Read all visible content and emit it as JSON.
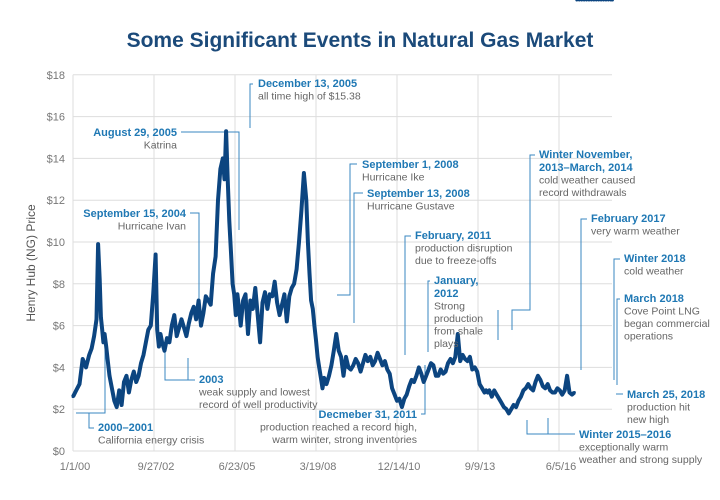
{
  "chart_data": {
    "type": "line",
    "title": "Some Significant Events in Natural Gas Market",
    "xlabel": "",
    "ylabel": "Henry Hub (NG) Price",
    "ylim": [
      0,
      18
    ],
    "xlim_days_from_2000_01_01": [
      0,
      7000
    ],
    "grid": true,
    "legend": "none",
    "yticks": [
      {
        "value": 0,
        "label": "$0"
      },
      {
        "value": 2,
        "label": "$2"
      },
      {
        "value": 4,
        "label": "$4"
      },
      {
        "value": 6,
        "label": "$6"
      },
      {
        "value": 8,
        "label": "$8"
      },
      {
        "value": 10,
        "label": "$10"
      },
      {
        "value": 12,
        "label": "$12"
      },
      {
        "value": 14,
        "label": "$14"
      },
      {
        "value": 16,
        "label": "$16"
      },
      {
        "value": 18,
        "label": "$18"
      }
    ],
    "xticks": [
      {
        "day": 0,
        "label": "1/1/00"
      },
      {
        "day": 1000,
        "label": "9/27/02"
      },
      {
        "day": 2000,
        "label": "6/23/05"
      },
      {
        "day": 3000,
        "label": "3/19/08"
      },
      {
        "day": 4000,
        "label": "12/14/10"
      },
      {
        "day": 5000,
        "label": "9/9/13"
      },
      {
        "day": 6000,
        "label": "6/5/16"
      }
    ],
    "series": [
      {
        "name": "Henry Hub (NG) Price",
        "x_days": [
          0,
          40,
          80,
          120,
          160,
          200,
          230,
          260,
          290,
          310,
          330,
          345,
          360,
          375,
          390,
          410,
          430,
          450,
          480,
          510,
          540,
          570,
          600,
          630,
          660,
          690,
          720,
          750,
          780,
          810,
          840,
          870,
          900,
          930,
          960,
          990,
          1020,
          1040,
          1060,
          1080,
          1100,
          1130,
          1160,
          1190,
          1220,
          1250,
          1280,
          1310,
          1340,
          1370,
          1400,
          1430,
          1460,
          1490,
          1520,
          1550,
          1580,
          1610,
          1640,
          1670,
          1700,
          1730,
          1760,
          1790,
          1820,
          1850,
          1870,
          1890,
          1910,
          1930,
          1950,
          1970,
          1990,
          2010,
          2030,
          2050,
          2070,
          2100,
          2130,
          2160,
          2190,
          2220,
          2250,
          2280,
          2310,
          2340,
          2370,
          2400,
          2430,
          2460,
          2490,
          2520,
          2550,
          2580,
          2610,
          2640,
          2670,
          2700,
          2730,
          2760,
          2790,
          2820,
          2850,
          2880,
          2900,
          2920,
          2940,
          2960,
          2980,
          3000,
          3020,
          3040,
          3060,
          3080,
          3100,
          3130,
          3160,
          3190,
          3220,
          3250,
          3280,
          3310,
          3340,
          3370,
          3400,
          3430,
          3460,
          3490,
          3520,
          3550,
          3580,
          3610,
          3640,
          3670,
          3700,
          3730,
          3760,
          3790,
          3820,
          3850,
          3880,
          3910,
          3940,
          3970,
          4000,
          4030,
          4060,
          4090,
          4120,
          4150,
          4180,
          4210,
          4240,
          4270,
          4300,
          4330,
          4360,
          4390,
          4420,
          4450,
          4480,
          4510,
          4540,
          4570,
          4600,
          4630,
          4660,
          4690,
          4720,
          4750,
          4780,
          4810,
          4840,
          4870,
          4900,
          4930,
          4960,
          4990,
          5020,
          5050,
          5080,
          5100,
          5120,
          5140,
          5170,
          5200,
          5230,
          5260,
          5290,
          5320,
          5350,
          5380,
          5410,
          5440,
          5470,
          5500,
          5530,
          5560,
          5590,
          5620,
          5650,
          5680,
          5710,
          5740,
          5770,
          5800,
          5830,
          5860,
          5890,
          5920,
          5950,
          5980,
          6010,
          6040,
          6070,
          6100,
          6130,
          6160,
          6190,
          6220,
          6250,
          6280,
          6310,
          6340,
          6370,
          6400,
          6430,
          6460,
          6490,
          6520,
          6550,
          6580,
          6610,
          6640,
          6660
        ],
        "values": [
          2.6,
          2.9,
          3.2,
          4.4,
          4.0,
          4.6,
          4.9,
          5.5,
          6.3,
          9.9,
          8.2,
          6.4,
          5.8,
          5.2,
          5.6,
          5.0,
          4.3,
          3.6,
          3.0,
          2.4,
          2.1,
          2.9,
          2.2,
          3.3,
          3.6,
          2.8,
          3.4,
          3.8,
          3.3,
          3.6,
          4.2,
          4.6,
          5.2,
          5.8,
          6.0,
          7.5,
          9.4,
          5.8,
          5.0,
          5.6,
          5.2,
          4.8,
          5.4,
          5.2,
          6.0,
          6.5,
          5.5,
          5.9,
          6.3,
          5.9,
          5.5,
          6.1,
          6.6,
          6.9,
          6.3,
          7.2,
          6.0,
          6.6,
          7.4,
          7.2,
          7.0,
          8.5,
          9.3,
          12.0,
          13.5,
          14.0,
          13.0,
          15.3,
          13.0,
          11.0,
          9.5,
          8.0,
          7.5,
          6.5,
          7.5,
          6.8,
          6.0,
          7.2,
          7.5,
          5.6,
          7.2,
          6.8,
          7.8,
          6.5,
          5.2,
          7.1,
          7.6,
          6.8,
          7.5,
          7.4,
          8.1,
          7.1,
          6.5,
          7.0,
          7.5,
          6.2,
          7.4,
          7.8,
          8.0,
          8.7,
          10.0,
          11.5,
          13.3,
          12.0,
          10.0,
          8.5,
          7.2,
          6.8,
          6.0,
          5.3,
          4.5,
          4.0,
          3.5,
          3.0,
          3.5,
          3.2,
          3.6,
          4.1,
          4.8,
          5.6,
          4.8,
          4.5,
          3.6,
          4.5,
          4.0,
          3.9,
          4.1,
          4.4,
          4.2,
          3.8,
          4.2,
          4.6,
          4.3,
          4.5,
          4.1,
          4.3,
          4.7,
          4.4,
          4.1,
          4.3,
          3.9,
          3.7,
          3.0,
          2.7,
          2.4,
          2.5,
          2.1,
          2.5,
          2.7,
          3.1,
          3.4,
          3.3,
          3.6,
          4.0,
          3.7,
          3.3,
          3.6,
          3.9,
          4.2,
          4.1,
          3.6,
          3.6,
          3.9,
          3.7,
          3.8,
          4.2,
          4.4,
          4.2,
          4.5,
          5.6,
          4.3,
          4.6,
          4.4,
          4.3,
          4.5,
          3.9,
          4.0,
          3.8,
          3.2,
          3.0,
          2.8,
          2.9,
          2.8,
          2.9,
          2.6,
          2.9,
          2.7,
          2.5,
          2.3,
          2.1,
          2.0,
          1.8,
          2.0,
          2.2,
          2.1,
          2.4,
          2.6,
          2.9,
          3.0,
          3.2,
          3.0,
          2.9,
          3.3,
          3.6,
          3.4,
          3.1,
          3.0,
          3.2,
          2.9,
          2.8,
          2.8,
          3.0,
          2.9,
          2.7,
          2.9,
          3.6,
          2.8,
          2.7,
          2.8
        ]
      }
    ],
    "annotations": [
      {
        "id": "dec-2005",
        "heading": "December 13, 2005",
        "lines": [
          "all time high of $15.38"
        ]
      },
      {
        "id": "aug-2005",
        "heading": "August 29, 2005",
        "lines": [
          "Katrina"
        ]
      },
      {
        "id": "sep-2004",
        "heading": "September 15, 2004",
        "lines": [
          "Hurricane Ivan"
        ]
      },
      {
        "id": "sep1-2008",
        "heading": "September 1, 2008",
        "lines": [
          "Hurricane Ike"
        ]
      },
      {
        "id": "sep13-2008",
        "heading": "September 13, 2008",
        "lines": [
          "Hurricane Gustave"
        ]
      },
      {
        "id": "feb-2011",
        "heading": "February, 2011",
        "lines": [
          "production disruption",
          "due to freeze-offs"
        ]
      },
      {
        "id": "jan-2012",
        "heading": "January,",
        "heading2": "2012",
        "lines": [
          "Strong",
          "production",
          "from shale",
          "plays"
        ]
      },
      {
        "id": "winter-2013",
        "heading": "Winter November,",
        "heading2": "2013–March, 2014",
        "lines": [
          "cold weather caused",
          "record withdrawals"
        ]
      },
      {
        "id": "feb-2017",
        "heading": "February 2017",
        "lines": [
          "very warm weather"
        ]
      },
      {
        "id": "winter-2018",
        "heading": "Winter 2018",
        "lines": [
          "cold weather"
        ]
      },
      {
        "id": "mar-2018",
        "heading": "March 2018",
        "lines": [
          "Cove Point LNG",
          "began commercial",
          "operations"
        ]
      },
      {
        "id": "mar25-2018",
        "heading": "March 25, 2018",
        "lines": [
          "production hit",
          "new high"
        ]
      },
      {
        "id": "winter-2015",
        "heading": "Winter 2015–2016",
        "lines": [
          "exceptionally warm",
          "weather and strong supply"
        ]
      },
      {
        "id": "dec-2011",
        "heading": "Decmeber 31, 2011",
        "lines": [
          "production reached a record high,",
          "warm winter, strong inventories"
        ]
      },
      {
        "id": "y2003",
        "heading": "2003",
        "lines": [
          "weak supply and lowest",
          "record of well productivity"
        ]
      },
      {
        "id": "y2000",
        "heading": "2000–2001",
        "lines": [
          "California energy crisis"
        ]
      }
    ],
    "colors": {
      "series": "#0c4580",
      "annotation_heading": "#1f78b4",
      "annotation_line": "#3a87c0",
      "title": "#1b4a7a",
      "grid": "#dddddd"
    }
  }
}
